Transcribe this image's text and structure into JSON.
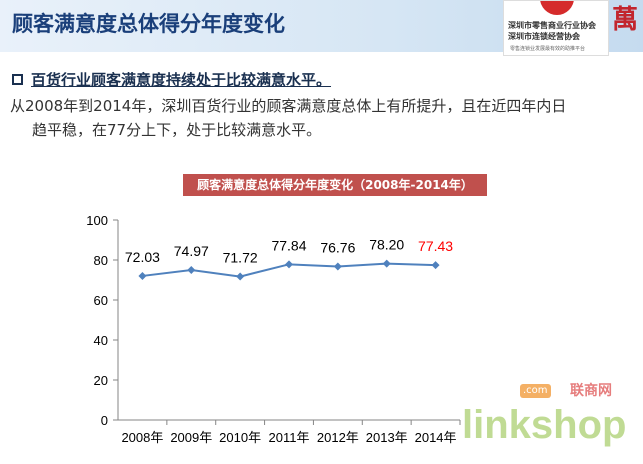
{
  "header": {
    "title": "顾客满意度总体得分年度变化"
  },
  "logo": {
    "line1": "深圳市零售商业行业协会",
    "line2": "深圳市连锁经营协会",
    "line3": "零售连锁业发展最有效的助推平台"
  },
  "bullet": "百货行业顾客满意度持续处于比较满意水平。",
  "body": {
    "line1": "从2008年到2014年，深圳百货行业的顾客满意度总体上有所提升，且在近四年内日",
    "line2": "趋平稳，在77分上下，处于比较满意水平。"
  },
  "watermark": {
    "text": "linkshop",
    "com": ".com",
    "cn": "联商网"
  },
  "colors": {
    "line": "#4f81bd",
    "highlight_label": "#ff0000",
    "title_bg": "#c0504d"
  },
  "chart_data": {
    "type": "line",
    "title": "顾客满意度总体得分年度变化（2008年-2014年）",
    "categories": [
      "2008年",
      "2009年",
      "2010年",
      "2011年",
      "2012年",
      "2013年",
      "2014年"
    ],
    "values": [
      72.03,
      74.97,
      71.72,
      77.84,
      76.76,
      78.2,
      77.43
    ],
    "labels": [
      "72.03",
      "74.97",
      "71.72",
      "77.84",
      "76.76",
      "78.20",
      "77.43"
    ],
    "ylim": [
      0,
      100
    ],
    "yticks": [
      0,
      20,
      40,
      60,
      80,
      100
    ],
    "grid": false,
    "highlight_index": 6
  }
}
